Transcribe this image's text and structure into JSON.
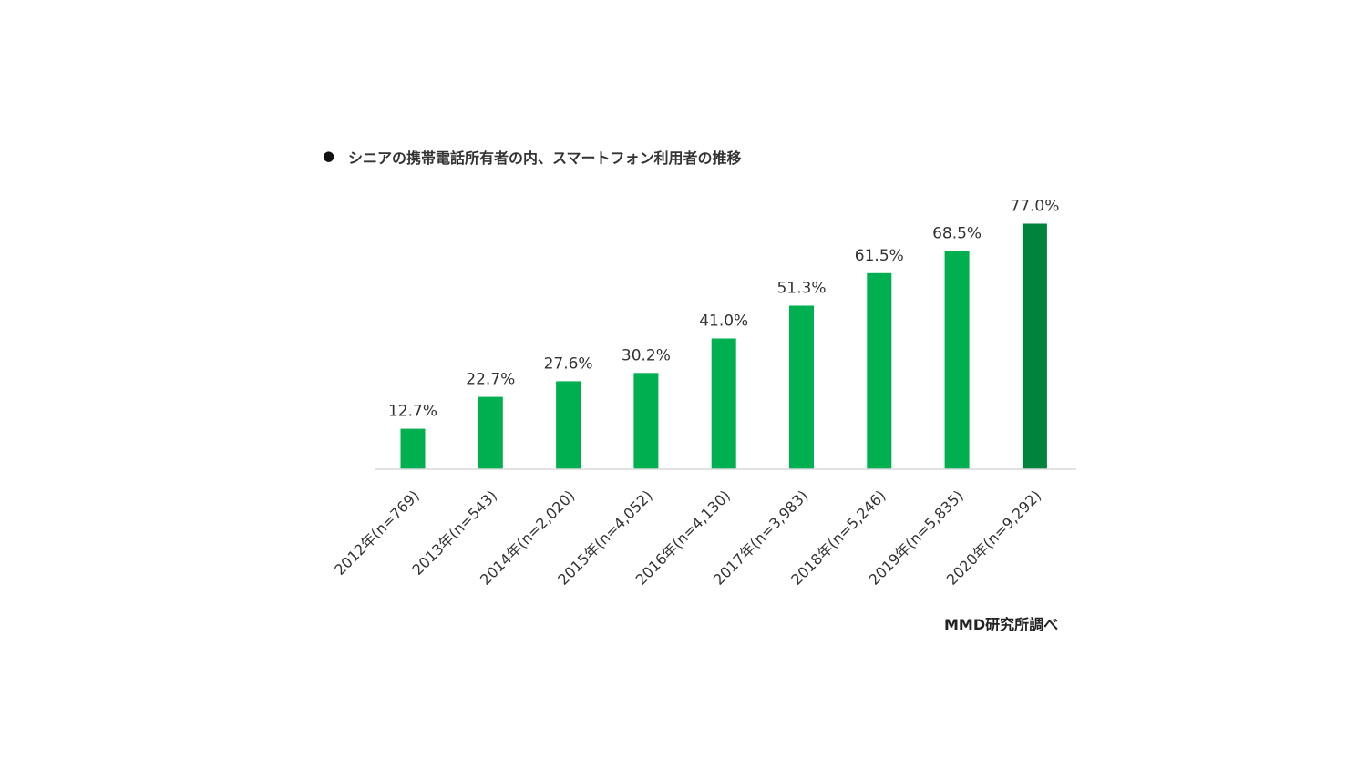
{
  "title_bullet": "●",
  "source": "MMD研究所調べ",
  "colors": {
    "bar": "#00b050",
    "bar_last": "#00843d",
    "axis": "#d9d9d9"
  },
  "chart_data": {
    "type": "bar",
    "title": "シニアの携帯電話所有者の内、スマートフォン利用者の推移",
    "categories": [
      "2012年(n=769)",
      "2013年(n=543)",
      "2014年(n=2,020)",
      "2015年(n=4,052)",
      "2016年(n=4,130)",
      "2017年(n=3,983)",
      "2018年(n=5,246)",
      "2019年(n=5,835)",
      "2020年(n=9,292)"
    ],
    "values": [
      12.7,
      22.7,
      27.6,
      30.2,
      41.0,
      51.3,
      61.5,
      68.5,
      77.0
    ],
    "data_labels": [
      "12.7%",
      "22.7%",
      "27.6%",
      "30.2%",
      "41.0%",
      "51.3%",
      "61.5%",
      "68.5%",
      "77.0%"
    ],
    "unit": "%",
    "ylim": [
      0,
      100
    ],
    "xlabel": "",
    "ylabel": "",
    "grid": false,
    "legend": "none"
  }
}
